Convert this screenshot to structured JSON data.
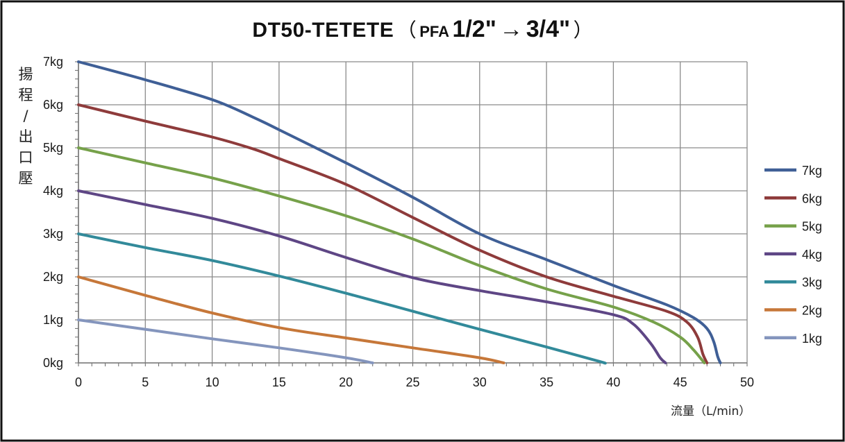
{
  "title": {
    "main": "DT50-TETETE",
    "paren_open": "（",
    "pfa": "PFA",
    "size_from": "1/2\"",
    "arrow": "→",
    "size_to": "3/4\"",
    "paren_close": "）"
  },
  "y_axis_label_chars": [
    "揚",
    "程",
    "/",
    "出",
    "口",
    "壓"
  ],
  "x_axis_label": "流量（L/min）",
  "chart_data": {
    "type": "line",
    "title": "DT50-TETETE （PFA 1/2\"→3/4\"）",
    "xlabel": "流量（L/min）",
    "ylabel": "揚程/出口壓",
    "xlim": [
      0,
      50
    ],
    "ylim": [
      0,
      7
    ],
    "x_ticks": [
      "0",
      "5",
      "10",
      "15",
      "20",
      "25",
      "30",
      "35",
      "40",
      "45",
      "50"
    ],
    "y_ticks": [
      "0kg",
      "1kg",
      "2kg",
      "3kg",
      "4kg",
      "5kg",
      "6kg",
      "7kg"
    ],
    "grid": true,
    "legend_position": "right",
    "series": [
      {
        "name": "7kg",
        "color": "#4472C4",
        "stroke": "#3F5F96",
        "points": [
          [
            0,
            7
          ],
          [
            5,
            6.58
          ],
          [
            10,
            6.12
          ],
          [
            13,
            5.72
          ],
          [
            15,
            5.42
          ],
          [
            20,
            4.65
          ],
          [
            25,
            3.85
          ],
          [
            30,
            3.0
          ],
          [
            35,
            2.4
          ],
          [
            40,
            1.8
          ],
          [
            44,
            1.35
          ],
          [
            46,
            1.05
          ],
          [
            47,
            0.8
          ],
          [
            47.5,
            0.5
          ],
          [
            47.8,
            0.15
          ],
          [
            48,
            0
          ]
        ]
      },
      {
        "name": "6kg",
        "color": "#8E3B3B",
        "stroke": "#8E3B3B",
        "points": [
          [
            0,
            6
          ],
          [
            5,
            5.62
          ],
          [
            10,
            5.25
          ],
          [
            13,
            4.98
          ],
          [
            15,
            4.75
          ],
          [
            20,
            4.15
          ],
          [
            25,
            3.38
          ],
          [
            30,
            2.62
          ],
          [
            35,
            2.0
          ],
          [
            40,
            1.55
          ],
          [
            44,
            1.2
          ],
          [
            45.5,
            0.95
          ],
          [
            46.3,
            0.6
          ],
          [
            46.7,
            0.2
          ],
          [
            47,
            0
          ]
        ]
      },
      {
        "name": "5kg",
        "color": "#78A84B",
        "stroke": "#76A14A",
        "points": [
          [
            0,
            5
          ],
          [
            5,
            4.65
          ],
          [
            10,
            4.3
          ],
          [
            15,
            3.88
          ],
          [
            20,
            3.42
          ],
          [
            25,
            2.88
          ],
          [
            30,
            2.26
          ],
          [
            35,
            1.72
          ],
          [
            40,
            1.3
          ],
          [
            43,
            0.95
          ],
          [
            45,
            0.6
          ],
          [
            46,
            0.3
          ],
          [
            46.8,
            0
          ]
        ]
      },
      {
        "name": "4kg",
        "color": "#5E4685",
        "stroke": "#5E4685",
        "points": [
          [
            0,
            4
          ],
          [
            5,
            3.68
          ],
          [
            10,
            3.36
          ],
          [
            15,
            2.95
          ],
          [
            20,
            2.45
          ],
          [
            25,
            1.98
          ],
          [
            30,
            1.68
          ],
          [
            35,
            1.42
          ],
          [
            40,
            1.12
          ],
          [
            41.5,
            0.9
          ],
          [
            42.8,
            0.45
          ],
          [
            43.5,
            0.12
          ],
          [
            43.9,
            0
          ]
        ]
      },
      {
        "name": "3kg",
        "color": "#328A9A",
        "stroke": "#328A9A",
        "points": [
          [
            0,
            3
          ],
          [
            5,
            2.68
          ],
          [
            10,
            2.38
          ],
          [
            15,
            2.02
          ],
          [
            20,
            1.62
          ],
          [
            25,
            1.2
          ],
          [
            30,
            0.78
          ],
          [
            35,
            0.37
          ],
          [
            39,
            0.03
          ],
          [
            39.3,
            0
          ]
        ]
      },
      {
        "name": "2kg",
        "color": "#D07A3C",
        "stroke": "#C67739",
        "points": [
          [
            0,
            2
          ],
          [
            5,
            1.57
          ],
          [
            10,
            1.16
          ],
          [
            15,
            0.82
          ],
          [
            20,
            0.58
          ],
          [
            25,
            0.35
          ],
          [
            30,
            0.12
          ],
          [
            31.8,
            0
          ]
        ]
      },
      {
        "name": "1kg",
        "color": "#8899C0",
        "stroke": "#8495BD",
        "points": [
          [
            0,
            1
          ],
          [
            5,
            0.78
          ],
          [
            10,
            0.56
          ],
          [
            15,
            0.35
          ],
          [
            20,
            0.12
          ],
          [
            22,
            0
          ]
        ]
      }
    ]
  }
}
